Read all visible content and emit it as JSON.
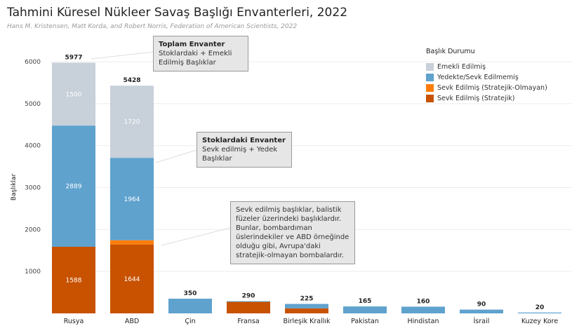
{
  "chart_data": {
    "type": "bar",
    "stacked": true,
    "title": "Tahmini Küresel Nükleer Savaş Başlığı Envanterleri, 2022",
    "subtitle": "Hans M. Kristensen, Matt Korda, and Robert Norris, Federation of American Scientists, 2022",
    "ylabel": "Başlıklar",
    "xlabel": "",
    "ylim": [
      0,
      6000
    ],
    "yticks": [
      1000,
      2000,
      3000,
      4000,
      5000,
      6000
    ],
    "grid": true,
    "legend_title": "Başlık Durumu",
    "legend_placement": "top-right",
    "categories": [
      "Rusya",
      "ABD",
      "Çin",
      "Fransa",
      "Birleşik Krallık",
      "Pakistan",
      "Hindistan",
      "İsrail",
      "Kuzey Kore"
    ],
    "totals": [
      5977,
      5428,
      350,
      290,
      225,
      165,
      160,
      90,
      20
    ],
    "series": [
      {
        "name": "Sevk Edilmiş (Stratejik)",
        "color": "#c85200",
        "values": [
          1588,
          1644,
          0,
          280,
          120,
          0,
          0,
          0,
          0
        ]
      },
      {
        "name": "Sevk Edilmiş (Stratejik-Olmayan)",
        "color": "#fc7d0b",
        "values": [
          0,
          100,
          0,
          0,
          0,
          0,
          0,
          0,
          0
        ]
      },
      {
        "name": "Yedekte/Sevk Edilmemiş",
        "color": "#5fa2ce",
        "values": [
          2889,
          1964,
          350,
          10,
          105,
          165,
          160,
          90,
          20
        ]
      },
      {
        "name": "Emekli Edilmiş",
        "color": "#c8d0d9",
        "values": [
          1500,
          1720,
          0,
          0,
          0,
          0,
          0,
          0,
          0
        ]
      }
    ],
    "segment_labels": {
      "Rusya": [
        "1588",
        "",
        "2889",
        "1500"
      ],
      "ABD": [
        "1644",
        "",
        "1964",
        "1720"
      ]
    },
    "annotations": [
      {
        "title": "Toplam Envanter",
        "text": "Stoklardaki + Emekli Edilmiş Başlıklar"
      },
      {
        "title": "Stoklardaki Envanter",
        "text": "Sevk edilmiş + Yedek Başlıklar"
      },
      {
        "title": "",
        "text": "Sevk edilmiş başlıklar, balistik füzeler üzerindeki başlıklardır. Bunlar, bombardıman üslerindekiler ve ABD örneğinde olduğu gibi, Avrupa'daki stratejik-olmayan bombalardır."
      }
    ]
  }
}
